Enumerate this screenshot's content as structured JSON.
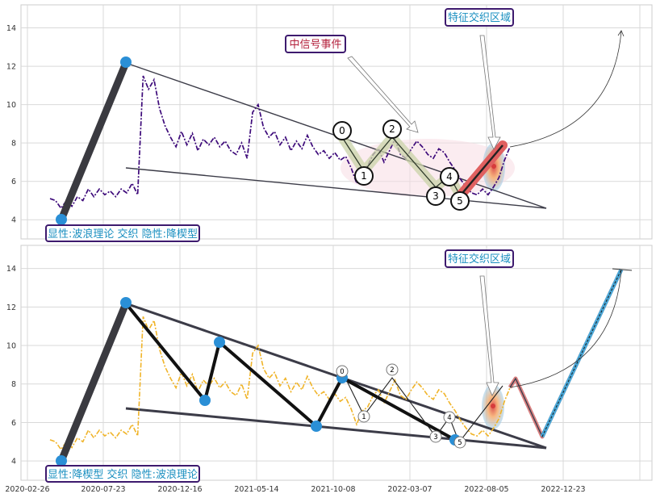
{
  "chart_data": [
    {
      "type": "line",
      "title": "",
      "xlabel": "",
      "ylabel": "",
      "ylim": [
        3,
        15.2
      ],
      "yticks": [
        4,
        6,
        8,
        10,
        12,
        14
      ],
      "grid": true,
      "line_color": "#3d0a7a",
      "series": [
        {
          "values": [
            5.1,
            5.0,
            4.6,
            5.0,
            4.7,
            5.2,
            5.0,
            5.6,
            5.2,
            5.6,
            5.3,
            5.5,
            5.2,
            5.6,
            5.4,
            5.9,
            5.3,
            11.5,
            10.8,
            11.3,
            9.8,
            8.9,
            8.3,
            7.8,
            8.6,
            7.9,
            8.5,
            7.6,
            8.2,
            7.9,
            8.3,
            7.8,
            8.1,
            7.6,
            7.4,
            8.0,
            7.2,
            9.6,
            10.0,
            8.8,
            8.3,
            8.6,
            7.9,
            8.3,
            7.6,
            8.1,
            7.7,
            8.4,
            7.8,
            7.4,
            7.6,
            7.2,
            7.5,
            7.1,
            7.3,
            6.7,
            5.9,
            6.6,
            6.8,
            7.4,
            7.7,
            7.0,
            7.6,
            8.2,
            7.4,
            7.2,
            7.7,
            8.1,
            7.8,
            7.4,
            7.2,
            7.7,
            7.5,
            7.0,
            6.6,
            6.1,
            5.7,
            5.4,
            5.3,
            5.6,
            5.3,
            5.7,
            6.2,
            7.1,
            7.8
          ]
        }
      ],
      "waves": [
        {
          "label": "0",
          "value": 8.3
        },
        {
          "label": "1",
          "value": 6.4
        },
        {
          "label": "2",
          "value": 8.3
        },
        {
          "label": "3",
          "value": 5.3
        },
        {
          "label": "4",
          "value": 6.2
        },
        {
          "label": "5",
          "value": 5.0
        }
      ],
      "annotations": {
        "box_top_right": "特征交织区域",
        "box_mid": "中信号事件",
        "box_bottom_left": "显性:波浪理论 交织 隐性:降楔型"
      }
    },
    {
      "type": "line",
      "title": "",
      "xlabel": "",
      "ylabel": "",
      "ylim": [
        3,
        15.2
      ],
      "yticks": [
        4,
        6,
        8,
        10,
        12,
        14
      ],
      "grid": true,
      "line_color": "#f0b429",
      "x_tick_labels": [
        "2020-02-26",
        "2020-07-23",
        "2020-12-16",
        "2021-05-14",
        "2021-10-08",
        "2022-03-07",
        "2022-08-05",
        "2022-12-23"
      ],
      "series": [
        {
          "values": [
            5.1,
            5.0,
            4.6,
            5.0,
            4.7,
            5.2,
            5.0,
            5.6,
            5.2,
            5.6,
            5.3,
            5.5,
            5.2,
            5.6,
            5.4,
            5.9,
            5.3,
            11.5,
            10.8,
            11.3,
            9.8,
            8.9,
            8.3,
            7.8,
            8.6,
            7.9,
            8.5,
            7.6,
            8.2,
            7.9,
            8.3,
            7.8,
            8.1,
            7.6,
            7.4,
            8.0,
            7.2,
            9.6,
            10.0,
            8.8,
            8.3,
            8.6,
            7.9,
            8.3,
            7.6,
            8.1,
            7.7,
            8.4,
            7.8,
            7.4,
            7.6,
            7.2,
            7.5,
            7.1,
            7.3,
            6.7,
            5.9,
            6.6,
            6.8,
            7.4,
            7.7,
            7.0,
            7.6,
            8.2,
            7.4,
            7.2,
            7.7,
            8.1,
            7.8,
            7.4,
            7.2,
            7.7,
            7.5,
            7.0,
            6.6,
            6.1,
            5.7,
            5.4,
            5.3,
            5.6,
            5.3,
            5.7,
            6.2,
            7.1,
            7.8
          ]
        }
      ],
      "waves": [
        {
          "label": "0",
          "value": 8.6
        },
        {
          "label": "1",
          "value": 6.3
        },
        {
          "label": "2",
          "value": 8.6
        },
        {
          "label": "3",
          "value": 5.2
        },
        {
          "label": "4",
          "value": 6.1
        },
        {
          "label": "5",
          "value": 4.9
        }
      ],
      "annotations": {
        "box_top_right": "特征交织区域",
        "box_bottom_left": "显性:降楔型 交织 隐性:波浪理论"
      }
    }
  ]
}
